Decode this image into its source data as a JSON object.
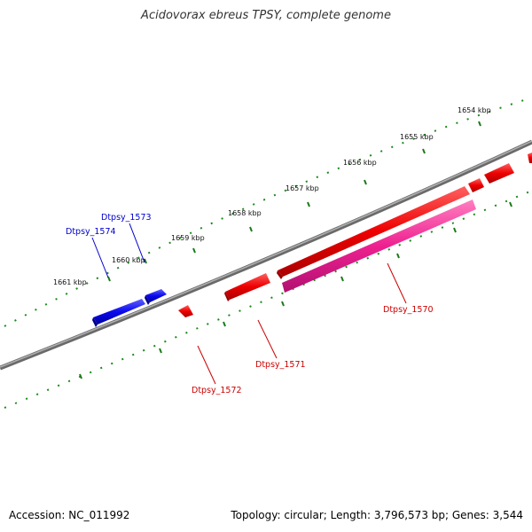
{
  "title": "Acidovorax ebreus TPSY, complete genome",
  "footer": {
    "accession": "Accession: NC_011992",
    "stats": "Topology: circular; Length: 3,796,573 bp; Genes: 3,544"
  },
  "colors": {
    "backbone": "#7a7a7a",
    "tick": "#1a7a1a",
    "strand_plus": "#1010e0",
    "strand_minus": "#e01010",
    "strand_minus_alt": "#e0208a",
    "label_blue": "#0000cc",
    "label_red": "#cc0000"
  },
  "scale_labels": [
    "1661 kbp",
    "1660 kbp",
    "1659 kbp",
    "1658 kbp",
    "1657 kbp",
    "1656 kbp",
    "1655 kbp",
    "1654 kbp"
  ],
  "gene_labels": [
    {
      "name": "Dtpsy_1573",
      "strand": "blue"
    },
    {
      "name": "Dtpsy_1574",
      "strand": "blue"
    },
    {
      "name": "Dtpsy_1570",
      "strand": "red"
    },
    {
      "name": "Dtpsy_1571",
      "strand": "red"
    },
    {
      "name": "Dtpsy_1572",
      "strand": "red"
    }
  ]
}
